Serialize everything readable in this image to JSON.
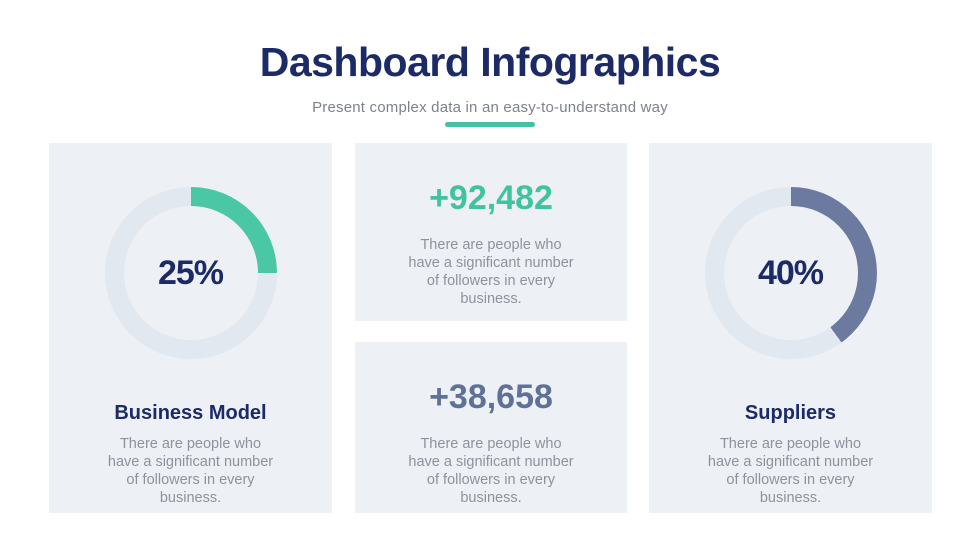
{
  "header": {
    "title": "Dashboard Infographics",
    "subtitle": "Present complex data in an easy-to-understand way"
  },
  "colors": {
    "navy": "#1c2b66",
    "teal_accent": "#41c3a2",
    "teal_arc": "#4ac7a5",
    "slate_accent": "#5f7196",
    "slate_arc": "#6b7a9e",
    "donut_track": "#e2e8f0",
    "card_background": "#edf0f5",
    "body_text": "#8d929d",
    "subtitle_text": "#7d828b"
  },
  "chart_data": [
    {
      "type": "donut",
      "title": "Business Model",
      "value_pct": 25,
      "center_label": "25%",
      "arc_color": "#4ac7a5",
      "track_color": "#e2e8f0",
      "description_lines": [
        "There are people who",
        "have a significant number",
        "of followers in every",
        "business."
      ]
    },
    {
      "type": "stat",
      "value": "+92,482",
      "value_color": "#41c3a2",
      "description_lines": [
        "There are people who",
        "have a significant number",
        "of followers in every",
        "business."
      ]
    },
    {
      "type": "stat",
      "value": "+38,658",
      "value_color": "#5f7196",
      "description_lines": [
        "There are people who",
        "have a significant number",
        "of followers in every",
        "business."
      ]
    },
    {
      "type": "donut",
      "title": "Suppliers",
      "value_pct": 40,
      "center_label": "40%",
      "arc_color": "#6b7a9e",
      "track_color": "#e2e8f0",
      "description_lines": [
        "There are people who",
        "have a significant number",
        "of followers in every",
        "business."
      ]
    }
  ]
}
